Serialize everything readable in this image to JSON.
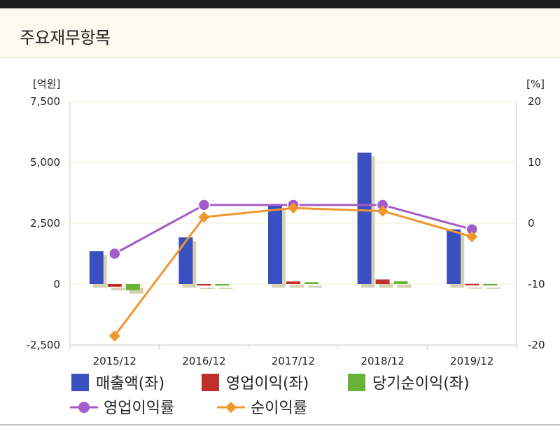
{
  "panel": {
    "title": "주요재무항목"
  },
  "chart_data": {
    "type": "bar",
    "categories": [
      "2015/12",
      "2016/12",
      "2017/12",
      "2018/12",
      "2019/12"
    ],
    "left_axis": {
      "unit_label": "[억원]",
      "ylim": [
        -2500,
        7500
      ],
      "ticks": [
        -2500,
        0,
        2500,
        5000,
        7500
      ],
      "tick_labels": [
        "-2,500",
        "0",
        "2,500",
        "5,000",
        "7,500"
      ]
    },
    "right_axis": {
      "unit_label": "[%]",
      "ylim": [
        -20,
        20
      ],
      "ticks": [
        -20,
        -10,
        0,
        10,
        20
      ],
      "tick_labels": [
        "-20",
        "-10",
        "0",
        "10",
        "20"
      ]
    },
    "grid": true,
    "legend_position": "bottom",
    "bar_series": [
      {
        "name": "매출액(좌)",
        "axis": "left",
        "color": "#3a4fc0",
        "values": [
          1350,
          1920,
          3250,
          5400,
          2250
        ]
      },
      {
        "name": "영업이익(좌)",
        "axis": "left",
        "color": "#c0302a",
        "values": [
          -110,
          -20,
          110,
          190,
          10
        ]
      },
      {
        "name": "당기순이익(좌)",
        "axis": "left",
        "color": "#6ab33a",
        "values": [
          -250,
          -30,
          80,
          120,
          5
        ]
      }
    ],
    "line_series": [
      {
        "name": "영업이익률",
        "axis": "right",
        "color": "#a35cc9",
        "marker": "circle",
        "values": [
          -5,
          3,
          3,
          3,
          -1
        ]
      },
      {
        "name": "순이익률",
        "axis": "right",
        "color": "#f0962e",
        "marker": "diamond",
        "values": [
          -18.5,
          1,
          2.5,
          2,
          -2.2
        ]
      }
    ]
  }
}
